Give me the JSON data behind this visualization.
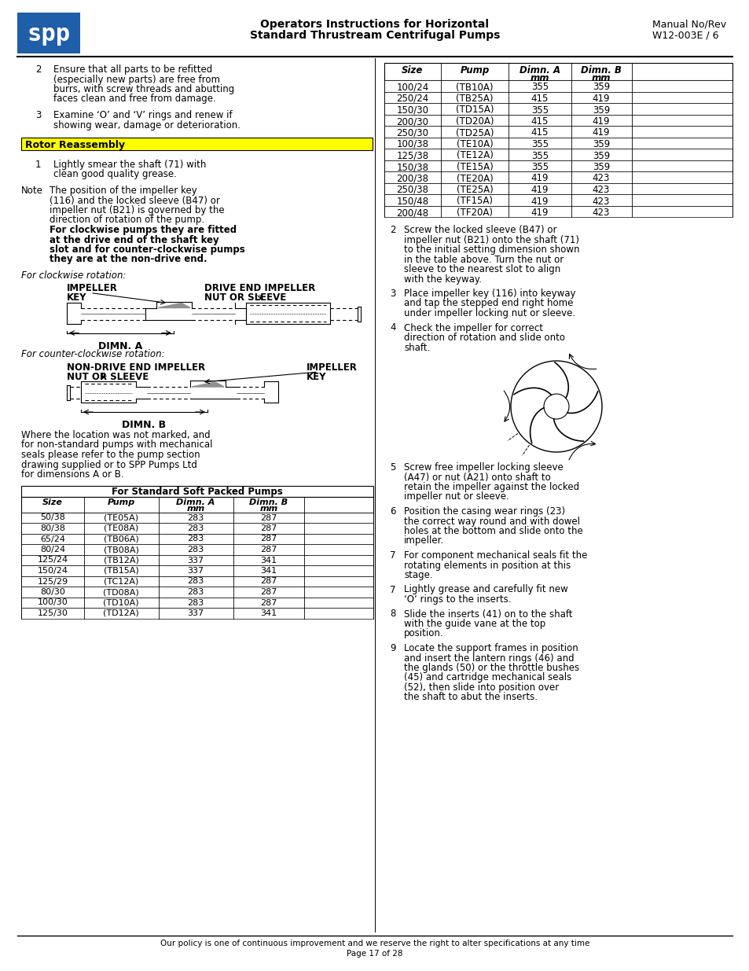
{
  "header": {
    "logo_color": "#1F5EA8",
    "title_line1": "Operators Instructions for Horizontal",
    "title_line2": "Standard Thrustream Centrifugal Pumps",
    "manual_label": "Manual No/Rev",
    "manual_number": "W12-003E / 6"
  },
  "footer_text1": "Our policy is one of continuous improvement and we reserve the right to alter specifications at any time",
  "footer_text2": "Page 17 of 28",
  "right_table": {
    "headers_row1": [
      "Size",
      "Pump",
      "Dimn. A",
      "Dimn. B"
    ],
    "headers_row2": [
      "",
      "",
      "mm",
      "mm"
    ],
    "rows": [
      [
        "100/24",
        "(TB10A)",
        "355",
        "359"
      ],
      [
        "250/24",
        "(TB25A)",
        "415",
        "419"
      ],
      [
        "150/30",
        "(TD15A)",
        "355",
        "359"
      ],
      [
        "200/30",
        "(TD20A)",
        "415",
        "419"
      ],
      [
        "250/30",
        "(TD25A)",
        "415",
        "419"
      ],
      [
        "100/38",
        "(TE10A)",
        "355",
        "359"
      ],
      [
        "125/38",
        "(TE12A)",
        "355",
        "359"
      ],
      [
        "150/38",
        "(TE15A)",
        "355",
        "359"
      ],
      [
        "200/38",
        "(TE20A)",
        "419",
        "423"
      ],
      [
        "250/38",
        "(TE25A)",
        "419",
        "423"
      ],
      [
        "150/48",
        "(TF15A)",
        "419",
        "423"
      ],
      [
        "200/48",
        "(TF20A)",
        "419",
        "423"
      ]
    ]
  },
  "soft_packed_table": {
    "title": "For Standard Soft Packed Pumps",
    "headers_row1": [
      "Size",
      "Pump",
      "Dimn. A",
      "Dimn. B"
    ],
    "headers_row2": [
      "",
      "",
      "mm",
      "mm"
    ],
    "rows": [
      [
        "50/38",
        "(TE05A)",
        "283",
        "287"
      ],
      [
        "80/38",
        "(TE08A)",
        "283",
        "287"
      ],
      [
        "65/24",
        "(TB06A)",
        "283",
        "287"
      ],
      [
        "80/24",
        "(TB08A)",
        "283",
        "287"
      ],
      [
        "125/24",
        "(TB12A)",
        "337",
        "341"
      ],
      [
        "150/24",
        "(TB15A)",
        "337",
        "341"
      ],
      [
        "125/29",
        "(TC12A)",
        "283",
        "287"
      ],
      [
        "80/30",
        "(TD08A)",
        "283",
        "287"
      ],
      [
        "100/30",
        "(TD10A)",
        "283",
        "287"
      ],
      [
        "125/30",
        "(TD12A)",
        "337",
        "341"
      ]
    ]
  }
}
